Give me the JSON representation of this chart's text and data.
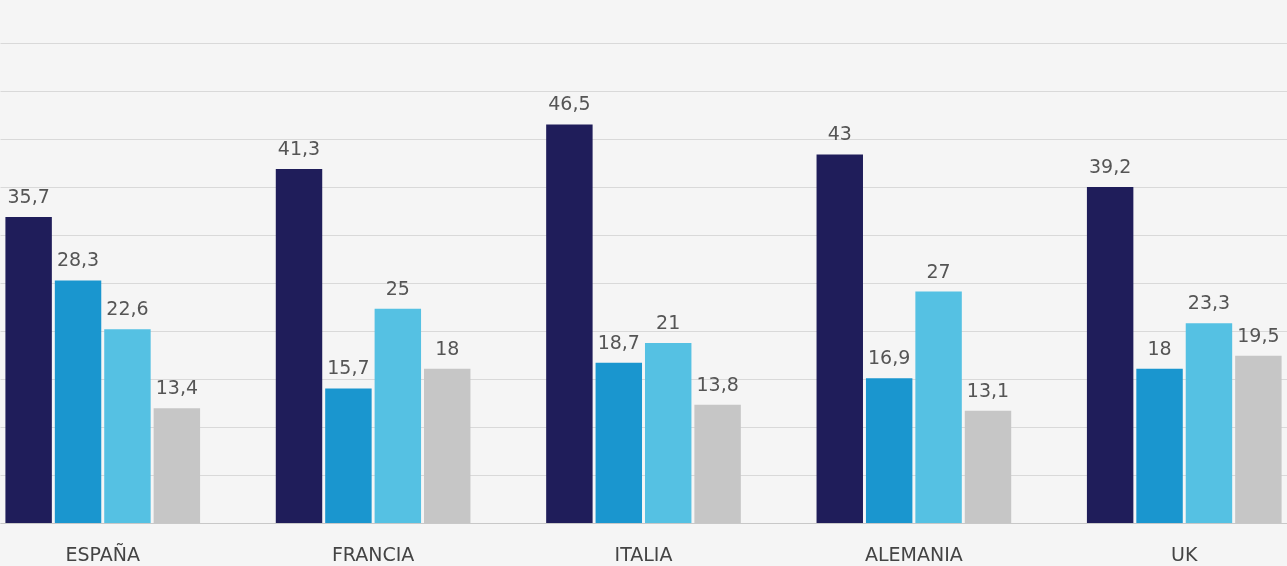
{
  "chart_data": {
    "type": "bar",
    "categories": [
      "ESPAÑA",
      "FRANCIA",
      "ITALIA",
      "ALEMANIA",
      "UK"
    ],
    "series": [
      {
        "color": "#1f1d5a",
        "values": [
          35.7,
          41.3,
          46.5,
          43,
          39.2
        ],
        "value_labels": [
          "35,7",
          "41,3",
          "46,5",
          "43",
          "39,2"
        ]
      },
      {
        "color": "#1a96cf",
        "values": [
          28.3,
          15.7,
          18.7,
          16.9,
          18
        ],
        "value_labels": [
          "28,3",
          "15,7",
          "18,7",
          "16,9",
          "18"
        ]
      },
      {
        "color": "#55c1e3",
        "values": [
          22.6,
          25,
          21,
          27,
          23.3
        ],
        "value_labels": [
          "22,6",
          "25",
          "21",
          "27",
          "23,3"
        ]
      },
      {
        "color": "#c6c6c6",
        "values": [
          13.4,
          18,
          13.8,
          13.1,
          19.5
        ],
        "value_labels": [
          "13,4",
          "18",
          "13,8",
          "13,1",
          "19,5"
        ]
      }
    ],
    "yticks": [
      {
        "value": 0,
        "label": null
      },
      {
        "value": 5.6,
        "label": null
      },
      {
        "value": 11.2,
        "label": null
      },
      {
        "value": 16.8,
        "label": null
      },
      {
        "value": 22.4,
        "label": null
      },
      {
        "value": 28,
        "label": null
      },
      {
        "value": 33.6,
        "label": null
      },
      {
        "value": 39.2,
        "label": null
      },
      {
        "value": 44.8,
        "label": null
      },
      {
        "value": 50.4,
        "label": null
      },
      {
        "value": 56,
        "label": null
      }
    ],
    "grid": "y",
    "legend": false,
    "tick_labels": "x"
  }
}
